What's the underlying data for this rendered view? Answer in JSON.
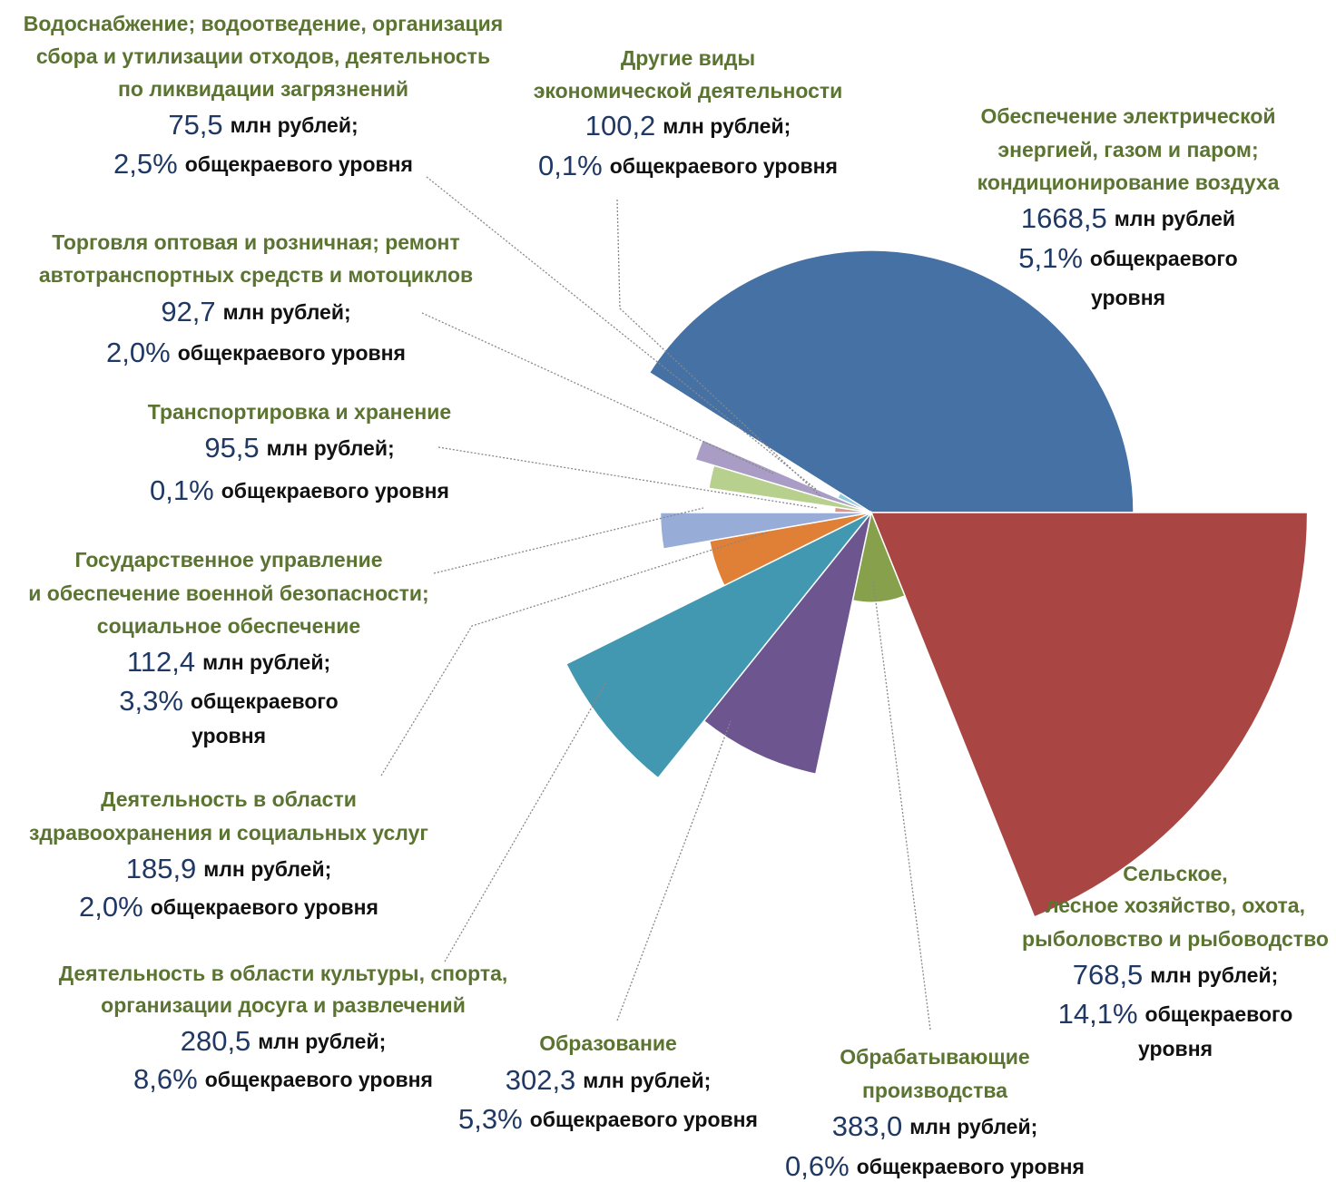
{
  "chart_data": {
    "type": "pie",
    "categories": [
      [
        "Обеспечение электрической",
        "энергией, газом и паром;",
        "кондиционирование воздуха"
      ],
      [
        "Сельское,",
        "лесное хозяйство, охота,",
        "рыболовство и рыбоводство"
      ],
      [
        "Обрабатывающие",
        "производства"
      ],
      [
        "Образование"
      ],
      [
        "Деятельность в области культуры, спорта,",
        "организации досуга и развлечений"
      ],
      [
        "Деятельность в области",
        "здравоохранения и социальных услуг"
      ],
      [
        "Государственное управление",
        "и обеспечение военной безопасности;",
        "социальное обеспечение"
      ],
      [
        "Транспортировка и хранение"
      ],
      [
        "Торговля оптовая и розничная; ремонт",
        "автотранспортных средств и мотоциклов"
      ],
      [
        "Водоснабжение; водоотведение, организация",
        "сбора и утилизации отходов, деятельность",
        "по ликвидации загрязнений"
      ],
      [
        "Другие виды",
        "экономической деятельности"
      ]
    ],
    "values": [
      1668.5,
      768.5,
      383.0,
      302.3,
      280.5,
      185.9,
      112.4,
      95.5,
      92.7,
      75.5,
      100.2
    ],
    "value_labels": [
      "1668,5",
      "768,5",
      "383,0",
      "302,3",
      "280,5",
      "185,9",
      "112,4",
      "95,5",
      "92,7",
      "75,5",
      "100,2"
    ],
    "value_units": [
      "млн рублей",
      "млн рублей;",
      "млн рублей;",
      "млн рублей;",
      "млн рублей;",
      "млн рублей;",
      "млн рублей;",
      "млн рублей;",
      "млн рублей;",
      "млн рублей;",
      "млн рублей;"
    ],
    "shares": [
      5.1,
      14.1,
      0.6,
      5.3,
      8.6,
      2.0,
      3.3,
      0.1,
      2.0,
      2.5,
      0.1
    ],
    "share_labels": [
      "5,1%",
      "14,1%",
      "0,6%",
      "5,3%",
      "8,6%",
      "2,0%",
      "3,3%",
      "0,1%",
      "2,0%",
      "2,5%",
      "0,1%"
    ],
    "share_units": [
      [
        "общекраевого",
        "уровня"
      ],
      [
        "общекраевого",
        "уровня"
      ],
      [
        "общекраевого уровня"
      ],
      [
        "общекраевого уровня"
      ],
      [
        "общекраевого уровня"
      ],
      [
        "общекраевого уровня"
      ],
      [
        "общекраевого",
        "уровня"
      ],
      [
        "общекраевого уровня"
      ],
      [
        "общекраевого уровня"
      ],
      [
        "общекраевого уровня"
      ],
      [
        "общекраевого уровня"
      ]
    ],
    "colors": [
      "#4571a5",
      "#a94543",
      "#87a04b",
      "#6d5690",
      "#4198b0",
      "#e07f36",
      "#97acd6",
      "#d9958f",
      "#b7d08e",
      "#a99cc5",
      "#93cddd"
    ]
  }
}
